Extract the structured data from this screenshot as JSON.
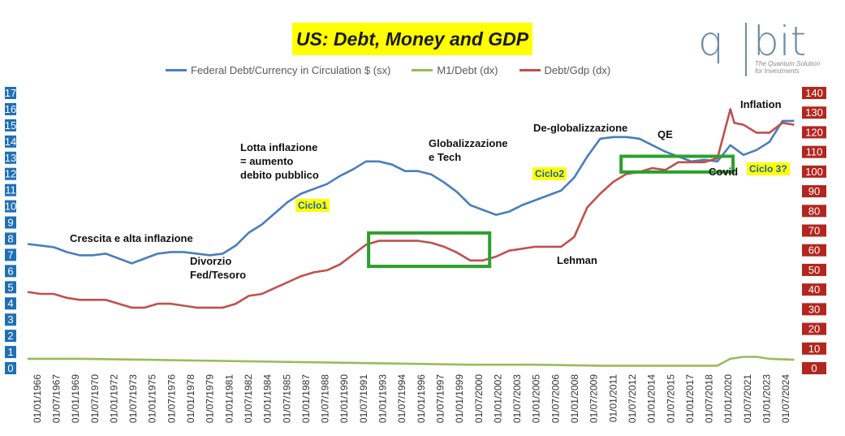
{
  "chart_data": {
    "type": "line",
    "title": "US: Debt, Money and GDP",
    "left_axis": {
      "min": 0,
      "max": 17,
      "ticks": [
        0,
        1,
        2,
        3,
        4,
        5,
        6,
        7,
        8,
        9,
        10,
        11,
        12,
        13,
        14,
        15,
        16,
        17
      ]
    },
    "right_axis": {
      "min": 0,
      "max": 140,
      "ticks": [
        0,
        10,
        20,
        30,
        40,
        50,
        60,
        70,
        80,
        90,
        100,
        110,
        120,
        130,
        140
      ]
    },
    "x_axis": {
      "labels": [
        "01/01/1966",
        "01/07/1967",
        "01/01/1969",
        "01/07/1970",
        "01/01/1972",
        "01/07/1973",
        "01/01/1975",
        "01/07/1976",
        "01/01/1978",
        "01/07/1979",
        "01/01/1981",
        "01/07/1982",
        "01/01/1984",
        "01/07/1985",
        "01/01/1987",
        "01/07/1988",
        "01/01/1990",
        "01/07/1991",
        "01/01/1993",
        "01/07/1994",
        "01/01/1996",
        "01/07/1997",
        "01/01/1999",
        "01/07/2000",
        "01/01/2002",
        "01/07/2003",
        "01/01/2005",
        "01/07/2006",
        "01/01/2008",
        "01/07/2009",
        "01/01/2011",
        "01/07/2012",
        "01/01/2014",
        "01/07/2015",
        "01/01/2017",
        "01/07/2018",
        "01/01/2020",
        "01/07/2021",
        "01/01/2023",
        "01/07/2024"
      ],
      "start_year": 1966.0,
      "end_year": 2025.0
    },
    "series": [
      {
        "name": "Federal Debt/Currency in Circulation $ (sx)",
        "axis": "left",
        "color": "#4a7ebb",
        "points": [
          [
            1966,
            7.7
          ],
          [
            1967,
            7.6
          ],
          [
            1968,
            7.5
          ],
          [
            1969,
            7.2
          ],
          [
            1970,
            7.0
          ],
          [
            1971,
            7.0
          ],
          [
            1972,
            7.1
          ],
          [
            1973,
            6.8
          ],
          [
            1974,
            6.5
          ],
          [
            1975,
            6.8
          ],
          [
            1976,
            7.1
          ],
          [
            1977,
            7.2
          ],
          [
            1978,
            7.2
          ],
          [
            1979,
            7.1
          ],
          [
            1980,
            7.0
          ],
          [
            1981,
            7.1
          ],
          [
            1982,
            7.6
          ],
          [
            1983,
            8.4
          ],
          [
            1984,
            8.9
          ],
          [
            1985,
            9.6
          ],
          [
            1986,
            10.3
          ],
          [
            1987,
            10.8
          ],
          [
            1988,
            11.1
          ],
          [
            1989,
            11.4
          ],
          [
            1990,
            11.9
          ],
          [
            1991,
            12.3
          ],
          [
            1992,
            12.8
          ],
          [
            1993,
            12.8
          ],
          [
            1994,
            12.6
          ],
          [
            1995,
            12.2
          ],
          [
            1996,
            12.2
          ],
          [
            1997,
            12.0
          ],
          [
            1998,
            11.5
          ],
          [
            1999,
            10.9
          ],
          [
            2000,
            10.1
          ],
          [
            2001,
            9.8
          ],
          [
            2002,
            9.5
          ],
          [
            2003,
            9.7
          ],
          [
            2004,
            10.1
          ],
          [
            2005,
            10.4
          ],
          [
            2006,
            10.7
          ],
          [
            2007,
            11.0
          ],
          [
            2008,
            11.8
          ],
          [
            2009,
            13.1
          ],
          [
            2010,
            14.2
          ],
          [
            2011,
            14.3
          ],
          [
            2012,
            14.3
          ],
          [
            2013,
            14.2
          ],
          [
            2014,
            13.8
          ],
          [
            2015,
            13.4
          ],
          [
            2016,
            13.1
          ],
          [
            2017,
            12.8
          ],
          [
            2018,
            12.9
          ],
          [
            2019,
            12.8
          ],
          [
            2020,
            13.8
          ],
          [
            2021,
            13.2
          ],
          [
            2022,
            13.5
          ],
          [
            2023,
            14.0
          ],
          [
            2024,
            15.3
          ],
          [
            2024.9,
            15.3
          ]
        ]
      },
      {
        "name": "M1/Debt (dx)",
        "axis": "right",
        "color": "#9bbb59",
        "points": [
          [
            1966,
            5
          ],
          [
            1970,
            5
          ],
          [
            1975,
            4.5
          ],
          [
            1980,
            4
          ],
          [
            1985,
            3.5
          ],
          [
            1990,
            3
          ],
          [
            1995,
            2.5
          ],
          [
            2000,
            2
          ],
          [
            2005,
            2
          ],
          [
            2010,
            1.5
          ],
          [
            2015,
            1.5
          ],
          [
            2019,
            1.5
          ],
          [
            2020,
            5
          ],
          [
            2021,
            6
          ],
          [
            2022,
            6
          ],
          [
            2023,
            5
          ],
          [
            2024.9,
            4.5
          ]
        ]
      },
      {
        "name": "Debt/Gdp (dx)",
        "axis": "right",
        "color": "#c0504d",
        "points": [
          [
            1966,
            39
          ],
          [
            1967,
            38
          ],
          [
            1968,
            38
          ],
          [
            1969,
            36
          ],
          [
            1970,
            35
          ],
          [
            1971,
            35
          ],
          [
            1972,
            35
          ],
          [
            1973,
            33
          ],
          [
            1974,
            31
          ],
          [
            1975,
            31
          ],
          [
            1976,
            33
          ],
          [
            1977,
            33
          ],
          [
            1978,
            32
          ],
          [
            1979,
            31
          ],
          [
            1980,
            31
          ],
          [
            1981,
            31
          ],
          [
            1982,
            33
          ],
          [
            1983,
            37
          ],
          [
            1984,
            38
          ],
          [
            1985,
            41
          ],
          [
            1986,
            44
          ],
          [
            1987,
            47
          ],
          [
            1988,
            49
          ],
          [
            1989,
            50
          ],
          [
            1990,
            53
          ],
          [
            1991,
            58
          ],
          [
            1992,
            63
          ],
          [
            1993,
            65
          ],
          [
            1994,
            65
          ],
          [
            1995,
            65
          ],
          [
            1996,
            65
          ],
          [
            1997,
            64
          ],
          [
            1998,
            62
          ],
          [
            1999,
            59
          ],
          [
            2000,
            55
          ],
          [
            2001,
            55
          ],
          [
            2002,
            57
          ],
          [
            2003,
            60
          ],
          [
            2004,
            61
          ],
          [
            2005,
            62
          ],
          [
            2006,
            62
          ],
          [
            2007,
            62
          ],
          [
            2008,
            67
          ],
          [
            2009,
            82
          ],
          [
            2010,
            89
          ],
          [
            2011,
            95
          ],
          [
            2012,
            99
          ],
          [
            2013,
            100
          ],
          [
            2014,
            102
          ],
          [
            2015,
            101
          ],
          [
            2016,
            105
          ],
          [
            2017,
            105
          ],
          [
            2018,
            105
          ],
          [
            2019,
            107
          ],
          [
            2020,
            132
          ],
          [
            2020.3,
            125
          ],
          [
            2021,
            124
          ],
          [
            2022,
            120
          ],
          [
            2023,
            120
          ],
          [
            2024,
            125
          ],
          [
            2024.9,
            124
          ]
        ]
      }
    ],
    "annotations": [
      {
        "id": "ann-crescita",
        "text": "Crescita e alta inflazione"
      },
      {
        "id": "ann-divorzio",
        "lines": [
          "Divorzio",
          "Fed/Tesoro"
        ]
      },
      {
        "id": "ann-lotta",
        "lines": [
          "Lotta inflazione",
          "= aumento",
          "debito pubblico"
        ]
      },
      {
        "id": "ann-globalizzazione",
        "lines": [
          "Globalizzazione",
          "e Tech"
        ]
      },
      {
        "id": "ann-deglobal",
        "text": "De-globalizzazione"
      },
      {
        "id": "ann-qe",
        "text": "QE"
      },
      {
        "id": "ann-inflation",
        "text": "Inflation"
      },
      {
        "id": "ann-lehman",
        "text": "Lehman"
      },
      {
        "id": "ann-covid",
        "text": "Covid"
      },
      {
        "id": "ann-ciclo1",
        "text": "Ciclo1",
        "highlight": true
      },
      {
        "id": "ann-ciclo2",
        "text": "Ciclo2",
        "highlight": true
      },
      {
        "id": "ann-ciclo3",
        "text": "Ciclo 3?",
        "highlight": true
      }
    ],
    "boxes": [
      {
        "id": "box-1993-2001",
        "x_from": 1992.2,
        "x_to": 2001.5,
        "right_from": 52,
        "right_to": 69,
        "color": "#2ca02c"
      },
      {
        "id": "box-2011-2020",
        "x_from": 2011.6,
        "x_to": 2020.2,
        "right_from": 100,
        "right_to": 108,
        "color": "#2ca02c"
      }
    ]
  },
  "legend": {
    "items": [
      {
        "label": "Federal Debt/Currency in Circulation $ (sx)",
        "color": "#4a7ebb"
      },
      {
        "label": "M1/Debt (dx)",
        "color": "#9bbb59"
      },
      {
        "label": "Debt/Gdp (dx)",
        "color": "#c0504d"
      }
    ]
  },
  "logo": {
    "q": "q",
    "bit": "bit",
    "tagline1": "The Quantum Solution",
    "tagline2": "for Investments"
  },
  "colors": {
    "left_axis_label_bg": "#1f6fb5",
    "right_axis_label_bg": "#b3261e",
    "title_bg": "#ffff00"
  }
}
